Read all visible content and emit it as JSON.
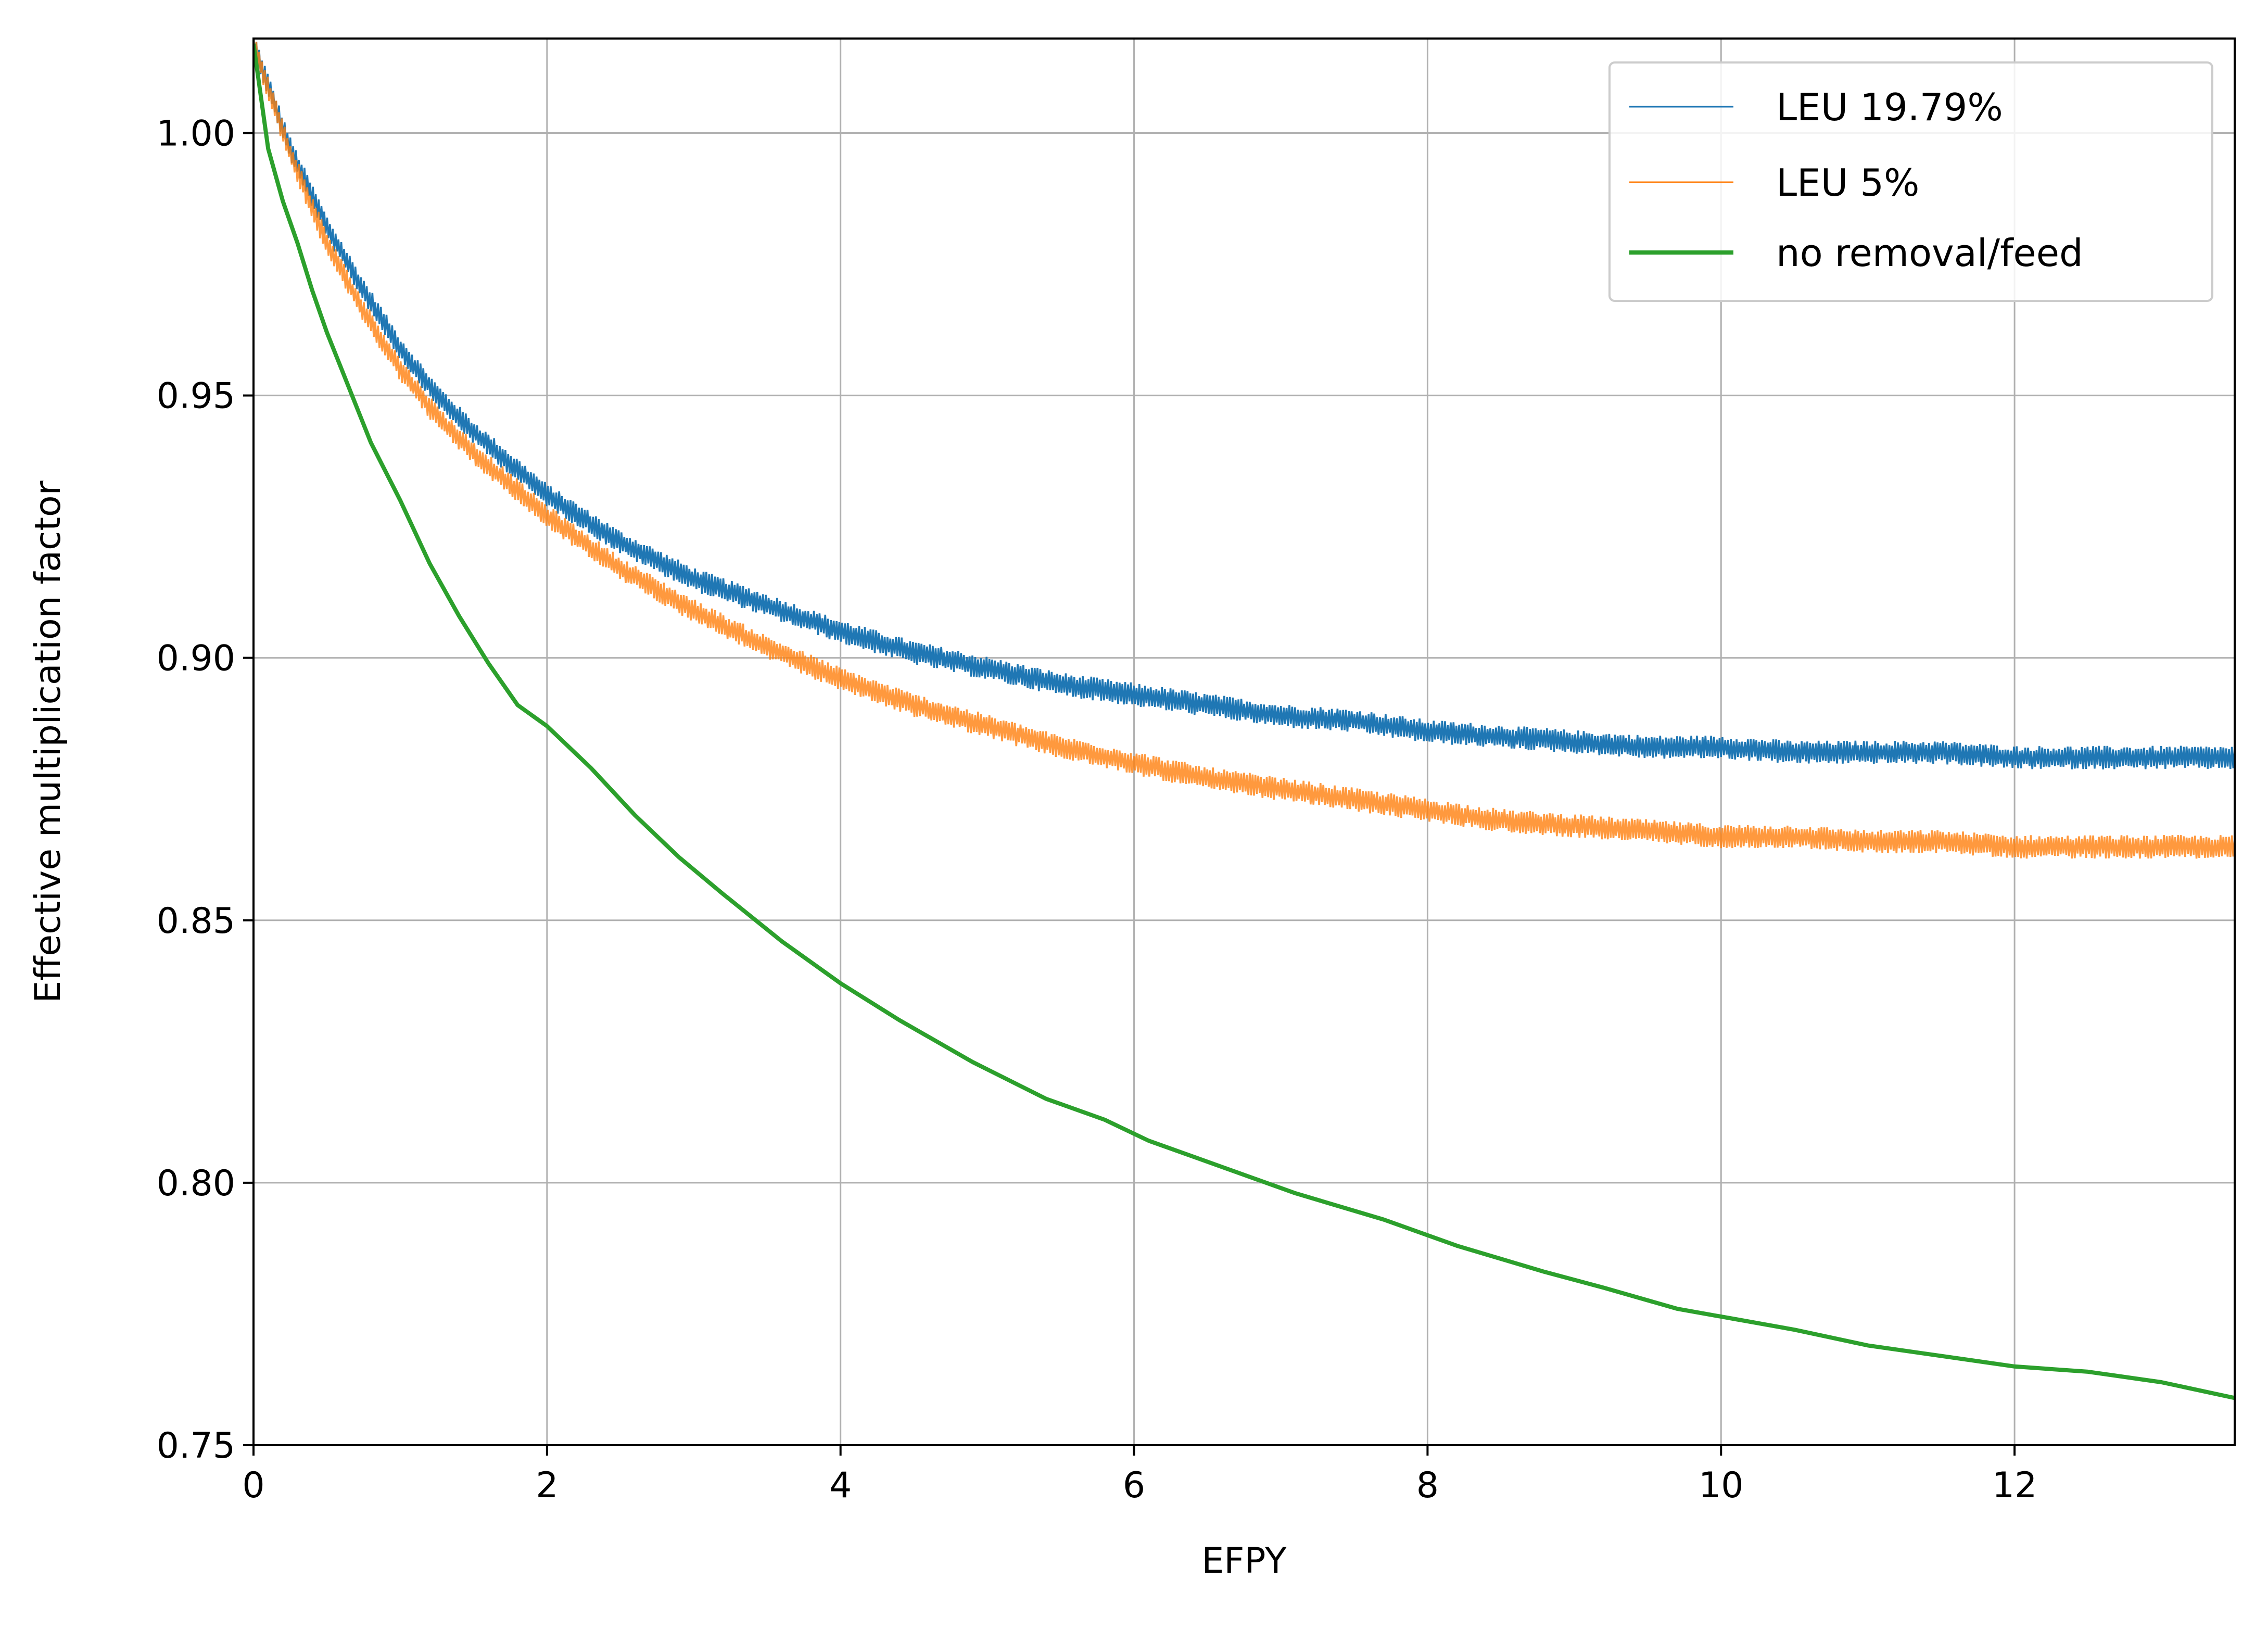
{
  "chart_data": {
    "type": "line",
    "title": "",
    "xlabel": "EFPY",
    "ylabel": "Effective multiplication factor",
    "xlim": [
      0,
      13.5
    ],
    "ylim": [
      0.75,
      1.018
    ],
    "xticks": [
      "0",
      "2",
      "4",
      "6",
      "8",
      "10",
      "12"
    ],
    "yticks": [
      "0.75",
      "0.80",
      "0.85",
      "0.90",
      "0.95",
      "1.00"
    ],
    "grid": true,
    "legend_position": "top-right",
    "series": [
      {
        "name": "LEU 19.79%",
        "color": "#1f77b4",
        "style": "noisy band",
        "band_width": 0.0045,
        "x": [
          0,
          0.25,
          0.5,
          0.75,
          1,
          1.25,
          1.5,
          2,
          2.5,
          3,
          3.5,
          4,
          4.5,
          5,
          5.5,
          6,
          6.5,
          7,
          7.5,
          8,
          8.5,
          9,
          9.5,
          10,
          10.5,
          11,
          11.5,
          12,
          12.5,
          13,
          13.5
        ],
        "y": [
          1.017,
          0.997,
          0.982,
          0.97,
          0.959,
          0.95,
          0.943,
          0.931,
          0.922,
          0.915,
          0.91,
          0.905,
          0.901,
          0.898,
          0.895,
          0.893,
          0.891,
          0.889,
          0.888,
          0.886,
          0.885,
          0.884,
          0.883,
          0.883,
          0.882,
          0.882,
          0.882,
          0.881,
          0.881,
          0.881,
          0.881
        ]
      },
      {
        "name": "LEU 5%",
        "color": "#ff7f0e",
        "style": "noisy band",
        "band_width": 0.0045,
        "x": [
          0,
          0.25,
          0.5,
          0.75,
          1,
          1.25,
          1.5,
          2,
          2.5,
          3,
          3.5,
          4,
          4.5,
          5,
          5.5,
          6,
          6.5,
          7,
          7.5,
          8,
          8.5,
          9,
          9.5,
          10,
          10.5,
          11,
          11.5,
          12,
          12.5,
          13,
          13.5
        ],
        "y": [
          1.017,
          0.996,
          0.979,
          0.966,
          0.955,
          0.946,
          0.939,
          0.927,
          0.917,
          0.909,
          0.902,
          0.896,
          0.891,
          0.887,
          0.883,
          0.88,
          0.877,
          0.875,
          0.873,
          0.871,
          0.869,
          0.868,
          0.867,
          0.866,
          0.866,
          0.865,
          0.865,
          0.864,
          0.864,
          0.864,
          0.864
        ]
      },
      {
        "name": "no removal/feed",
        "color": "#2ca02c",
        "style": "line",
        "x": [
          0,
          0.1,
          0.2,
          0.3,
          0.4,
          0.5,
          0.6,
          0.7,
          0.8,
          1.0,
          1.2,
          1.4,
          1.6,
          1.8,
          2.0,
          2.3,
          2.6,
          2.9,
          3.2,
          3.6,
          4.0,
          4.4,
          4.9,
          5.4,
          5.8,
          6.1,
          6.6,
          7.1,
          7.7,
          8.2,
          8.8,
          9.2,
          9.7,
          10.1,
          10.5,
          11.0,
          11.5,
          12.0,
          12.5,
          13.0,
          13.5
        ],
        "y": [
          1.017,
          0.997,
          0.987,
          0.979,
          0.97,
          0.962,
          0.955,
          0.948,
          0.941,
          0.93,
          0.918,
          0.908,
          0.899,
          0.891,
          0.887,
          0.879,
          0.87,
          0.862,
          0.855,
          0.846,
          0.838,
          0.831,
          0.823,
          0.816,
          0.812,
          0.808,
          0.803,
          0.798,
          0.793,
          0.788,
          0.783,
          0.78,
          0.776,
          0.774,
          0.772,
          0.769,
          0.767,
          0.765,
          0.764,
          0.762,
          0.759
        ]
      }
    ]
  }
}
